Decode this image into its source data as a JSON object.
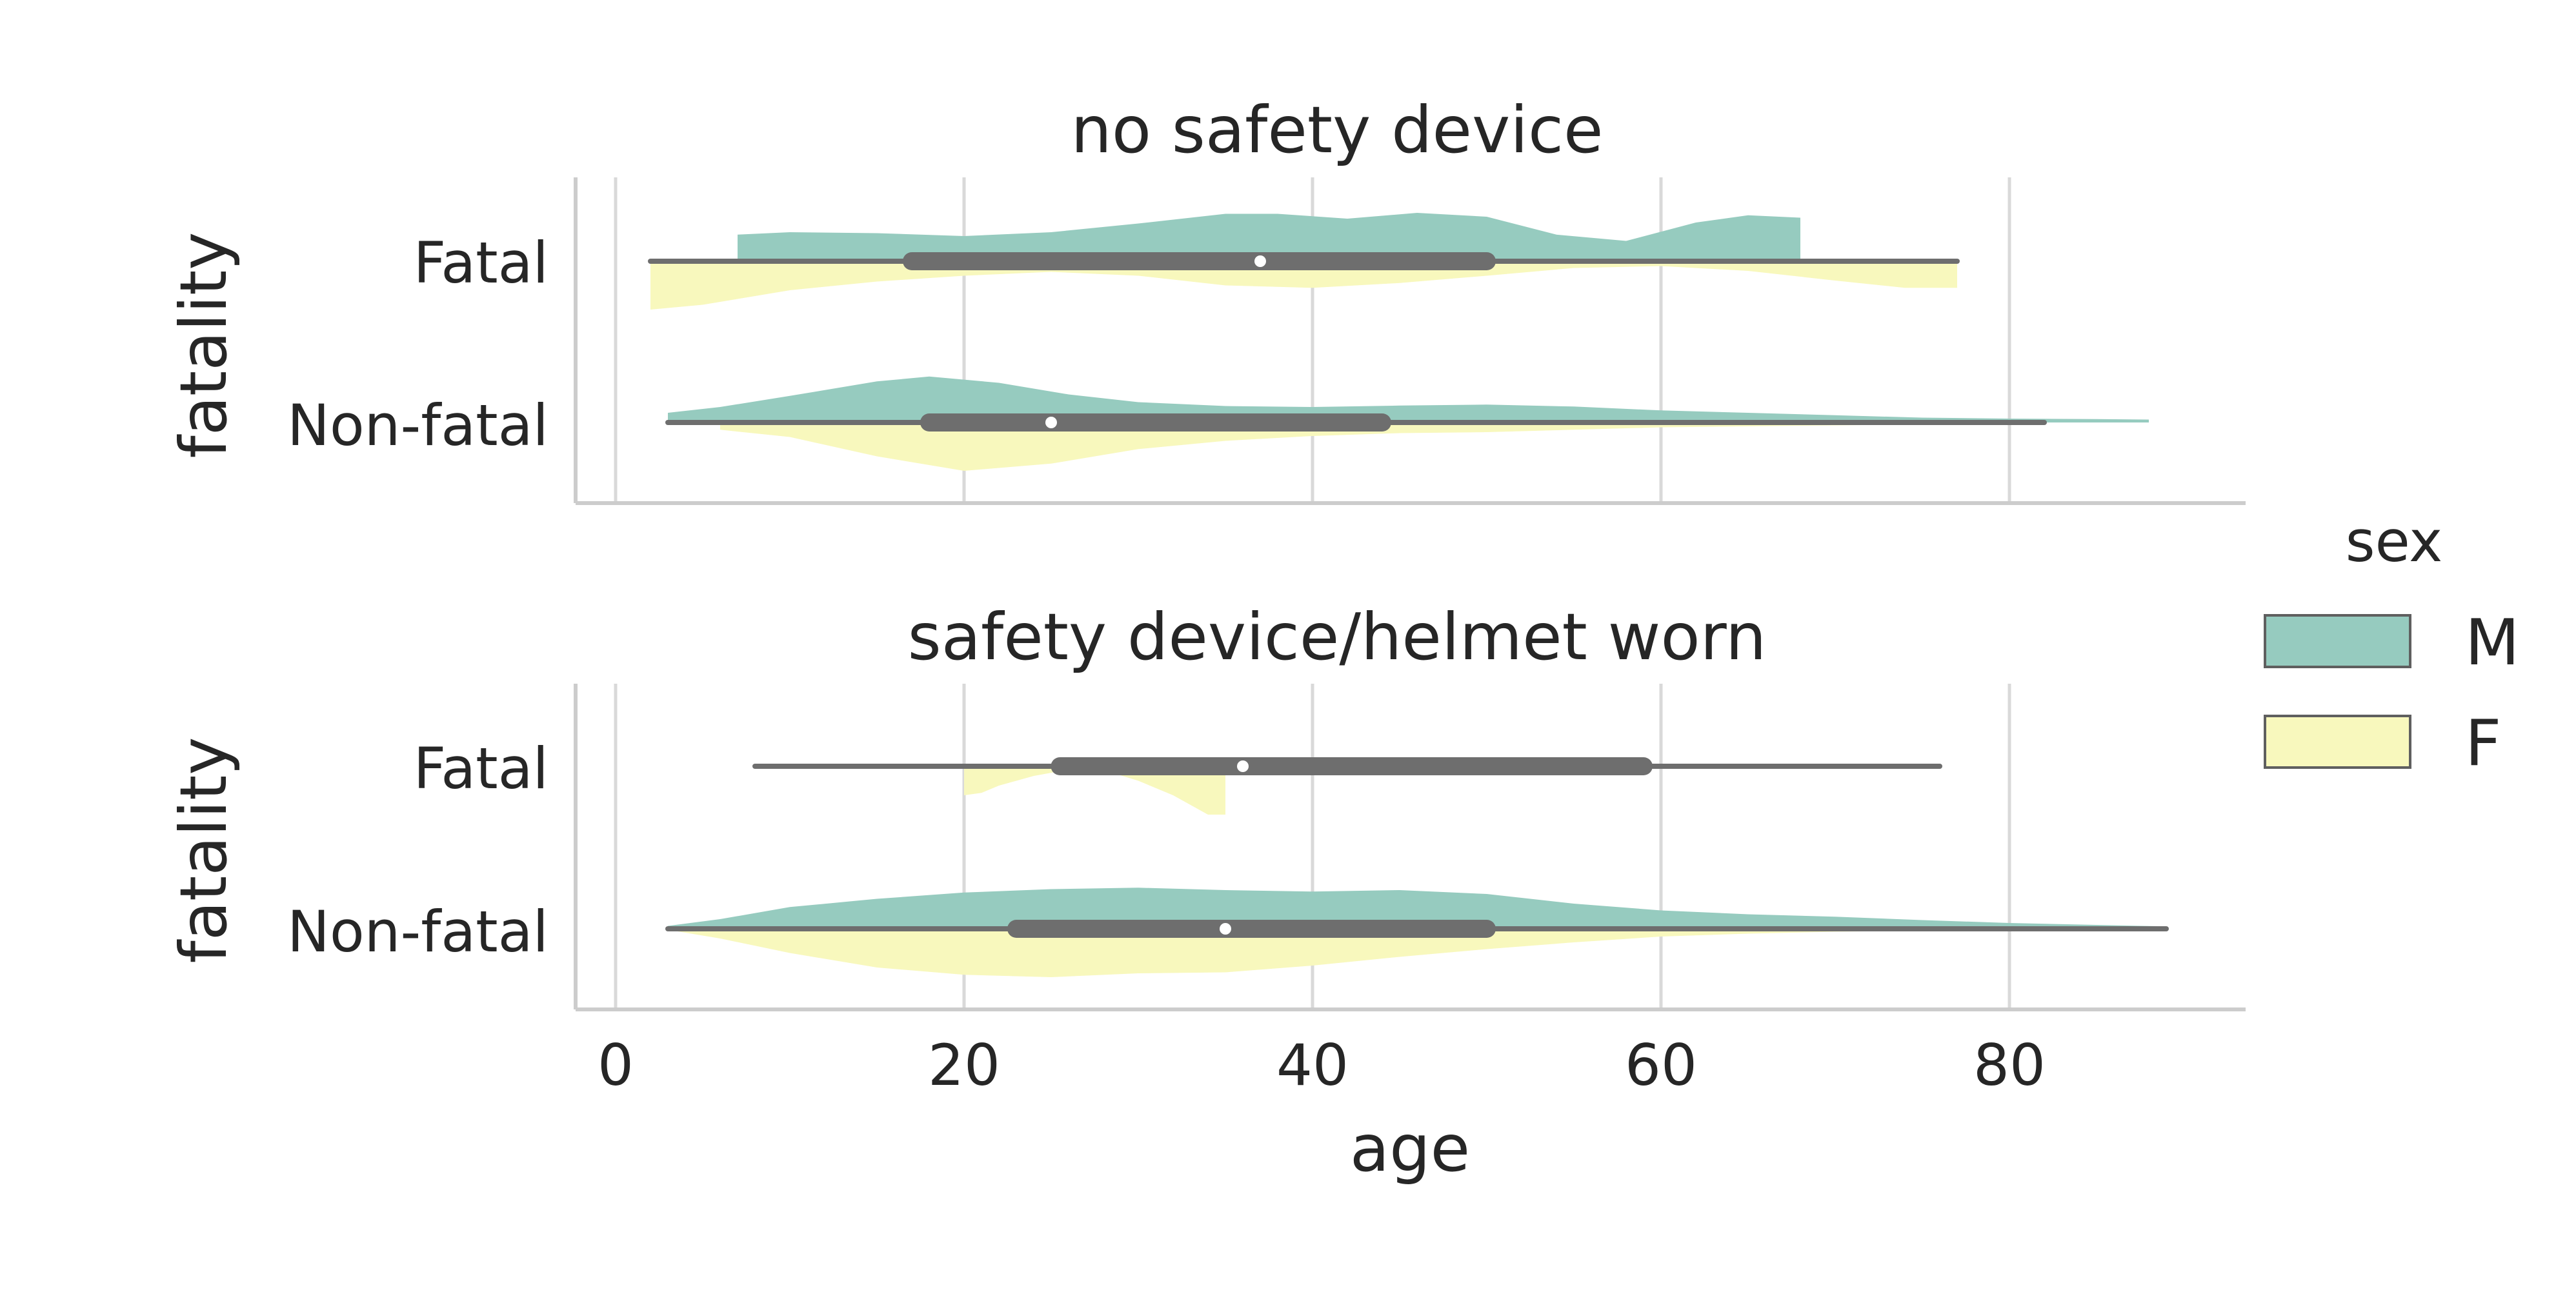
{
  "chart_data": {
    "type": "violin",
    "xlabel": "age",
    "xlim": [
      -3.0,
      93.0
    ],
    "xticks": [
      0,
      20,
      40,
      60,
      80
    ],
    "legend": {
      "title": "sex",
      "position": "right",
      "entries": [
        {
          "label": "M",
          "color": "#96CBBF"
        },
        {
          "label": "F",
          "color": "#F8F8BD"
        }
      ]
    },
    "line_color": "#6E6E6E",
    "grid_color": "#D9D9D9",
    "spine_color": "#CCCCCC",
    "panels": [
      {
        "title": "no safety device",
        "ylabel": "fatality",
        "categories": [
          "Fatal",
          "Non-fatal"
        ],
        "violins": [
          {
            "category": "Fatal",
            "M": {
              "range": [
                7,
                68
              ],
              "x": [
                7,
                10,
                15,
                20,
                25,
                30,
                35,
                38,
                42,
                46,
                50,
                54,
                58,
                62,
                65,
                68
              ],
              "d": [
                0.55,
                0.6,
                0.58,
                0.52,
                0.6,
                0.78,
                0.98,
                0.98,
                0.88,
                1.0,
                0.92,
                0.55,
                0.42,
                0.8,
                0.95,
                0.9
              ]
            },
            "F": {
              "range": [
                2,
                77
              ],
              "x": [
                2,
                5,
                10,
                15,
                20,
                25,
                30,
                35,
                40,
                45,
                50,
                55,
                60,
                65,
                70,
                74,
                77
              ],
              "d": [
                1.0,
                0.9,
                0.6,
                0.42,
                0.3,
                0.22,
                0.3,
                0.5,
                0.55,
                0.45,
                0.3,
                0.14,
                0.1,
                0.2,
                0.4,
                0.55,
                0.55
              ]
            },
            "box": {
              "whisker": [
                2,
                77
              ],
              "q1": 17,
              "median": 37,
              "q3": 50
            }
          },
          {
            "category": "Non-fatal",
            "M": {
              "range": [
                3,
                88
              ],
              "x": [
                3,
                6,
                10,
                15,
                18,
                22,
                26,
                30,
                35,
                40,
                45,
                50,
                55,
                60,
                65,
                70,
                75,
                80,
                85,
                88
              ],
              "d": [
                0.2,
                0.32,
                0.55,
                0.85,
                0.95,
                0.82,
                0.58,
                0.42,
                0.34,
                0.32,
                0.35,
                0.37,
                0.33,
                0.25,
                0.2,
                0.15,
                0.1,
                0.08,
                0.07,
                0.06
              ]
            },
            "F": {
              "range": [
                6,
                82
              ],
              "x": [
                6,
                10,
                15,
                20,
                25,
                30,
                35,
                40,
                45,
                50,
                55,
                60,
                65,
                70,
                75,
                80,
                82
              ],
              "d": [
                0.15,
                0.3,
                0.7,
                1.0,
                0.85,
                0.55,
                0.38,
                0.28,
                0.22,
                0.2,
                0.15,
                0.1,
                0.08,
                0.06,
                0.04,
                0.02,
                0.01
              ]
            },
            "box": {
              "whisker": [
                3,
                82
              ],
              "q1": 18,
              "median": 25,
              "q3": 44
            }
          }
        ]
      },
      {
        "title": "safety device/helmet worn",
        "ylabel": "fatality",
        "categories": [
          "Fatal",
          "Non-fatal"
        ],
        "violins": [
          {
            "category": "Fatal",
            "M": {
              "range": [
                8,
                76
              ],
              "x": [
                8,
                15,
                25,
                35,
                45,
                55,
                65,
                76
              ],
              "d": [
                0.04,
                0.04,
                0.03,
                0.03,
                0.03,
                0.03,
                0.04,
                0.05
              ]
            },
            "F": {
              "range": [
                20,
                35
              ],
              "x": [
                20,
                21,
                22,
                24,
                26,
                28,
                30,
                32,
                33,
                34,
                35
              ],
              "d": [
                0.6,
                0.55,
                0.4,
                0.2,
                0.07,
                0.08,
                0.3,
                0.6,
                0.8,
                1.0,
                1.0
              ]
            },
            "box": {
              "whisker": [
                8,
                76
              ],
              "q1": 25.5,
              "median": 36,
              "q3": 59
            }
          },
          {
            "category": "Non-fatal",
            "M": {
              "range": [
                3,
                89
              ],
              "x": [
                3,
                6,
                10,
                15,
                20,
                25,
                30,
                35,
                40,
                45,
                50,
                55,
                60,
                65,
                70,
                75,
                80,
                85,
                89
              ],
              "d": [
                0.06,
                0.2,
                0.45,
                0.62,
                0.75,
                0.82,
                0.85,
                0.8,
                0.77,
                0.8,
                0.72,
                0.52,
                0.38,
                0.3,
                0.25,
                0.18,
                0.12,
                0.08,
                0.05
              ]
            },
            "F": {
              "range": [
                3,
                85
              ],
              "x": [
                3,
                6,
                10,
                15,
                20,
                25,
                30,
                35,
                40,
                45,
                50,
                55,
                60,
                65,
                70,
                75,
                80,
                85
              ],
              "d": [
                0.02,
                0.2,
                0.5,
                0.8,
                0.95,
                1.0,
                0.92,
                0.9,
                0.76,
                0.58,
                0.42,
                0.28,
                0.16,
                0.1,
                0.06,
                0.04,
                0.02,
                0.01
              ]
            },
            "box": {
              "whisker": [
                3,
                89
              ],
              "q1": 23,
              "median": 35,
              "q3": 50
            }
          }
        ]
      }
    ]
  }
}
